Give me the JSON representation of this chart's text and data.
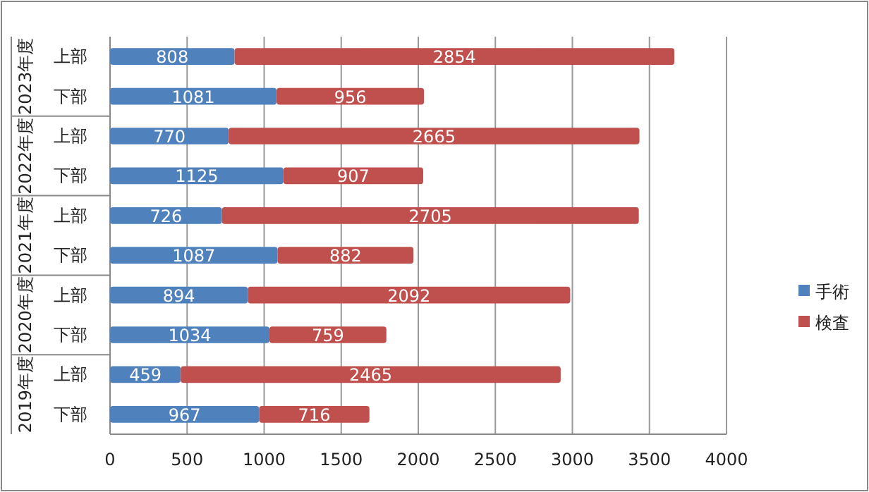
{
  "chart_data": {
    "type": "bar",
    "orientation": "horizontal",
    "stacked": true,
    "categories": [
      "上部",
      "下部",
      "上部",
      "下部",
      "上部",
      "下部",
      "上部",
      "下部",
      "上部",
      "下部"
    ],
    "annotations": [
      "2023年度",
      "2022年度",
      "2021年度",
      "2020年度",
      "2019年度"
    ],
    "series": [
      {
        "name": "手術",
        "color": "#4f81bd",
        "values": [
          808,
          1081,
          770,
          1125,
          726,
          1087,
          894,
          1034,
          459,
          967
        ]
      },
      {
        "name": "検査",
        "color": "#c0504d",
        "values": [
          2854,
          956,
          2665,
          907,
          2705,
          882,
          2092,
          759,
          2465,
          716
        ]
      }
    ],
    "xlim": [
      0,
      4000
    ],
    "xticks": [
      0,
      500,
      1000,
      1500,
      2000,
      2500,
      3000,
      3500,
      4000
    ],
    "data_labels": true,
    "grid": "x",
    "legend": "right"
  }
}
